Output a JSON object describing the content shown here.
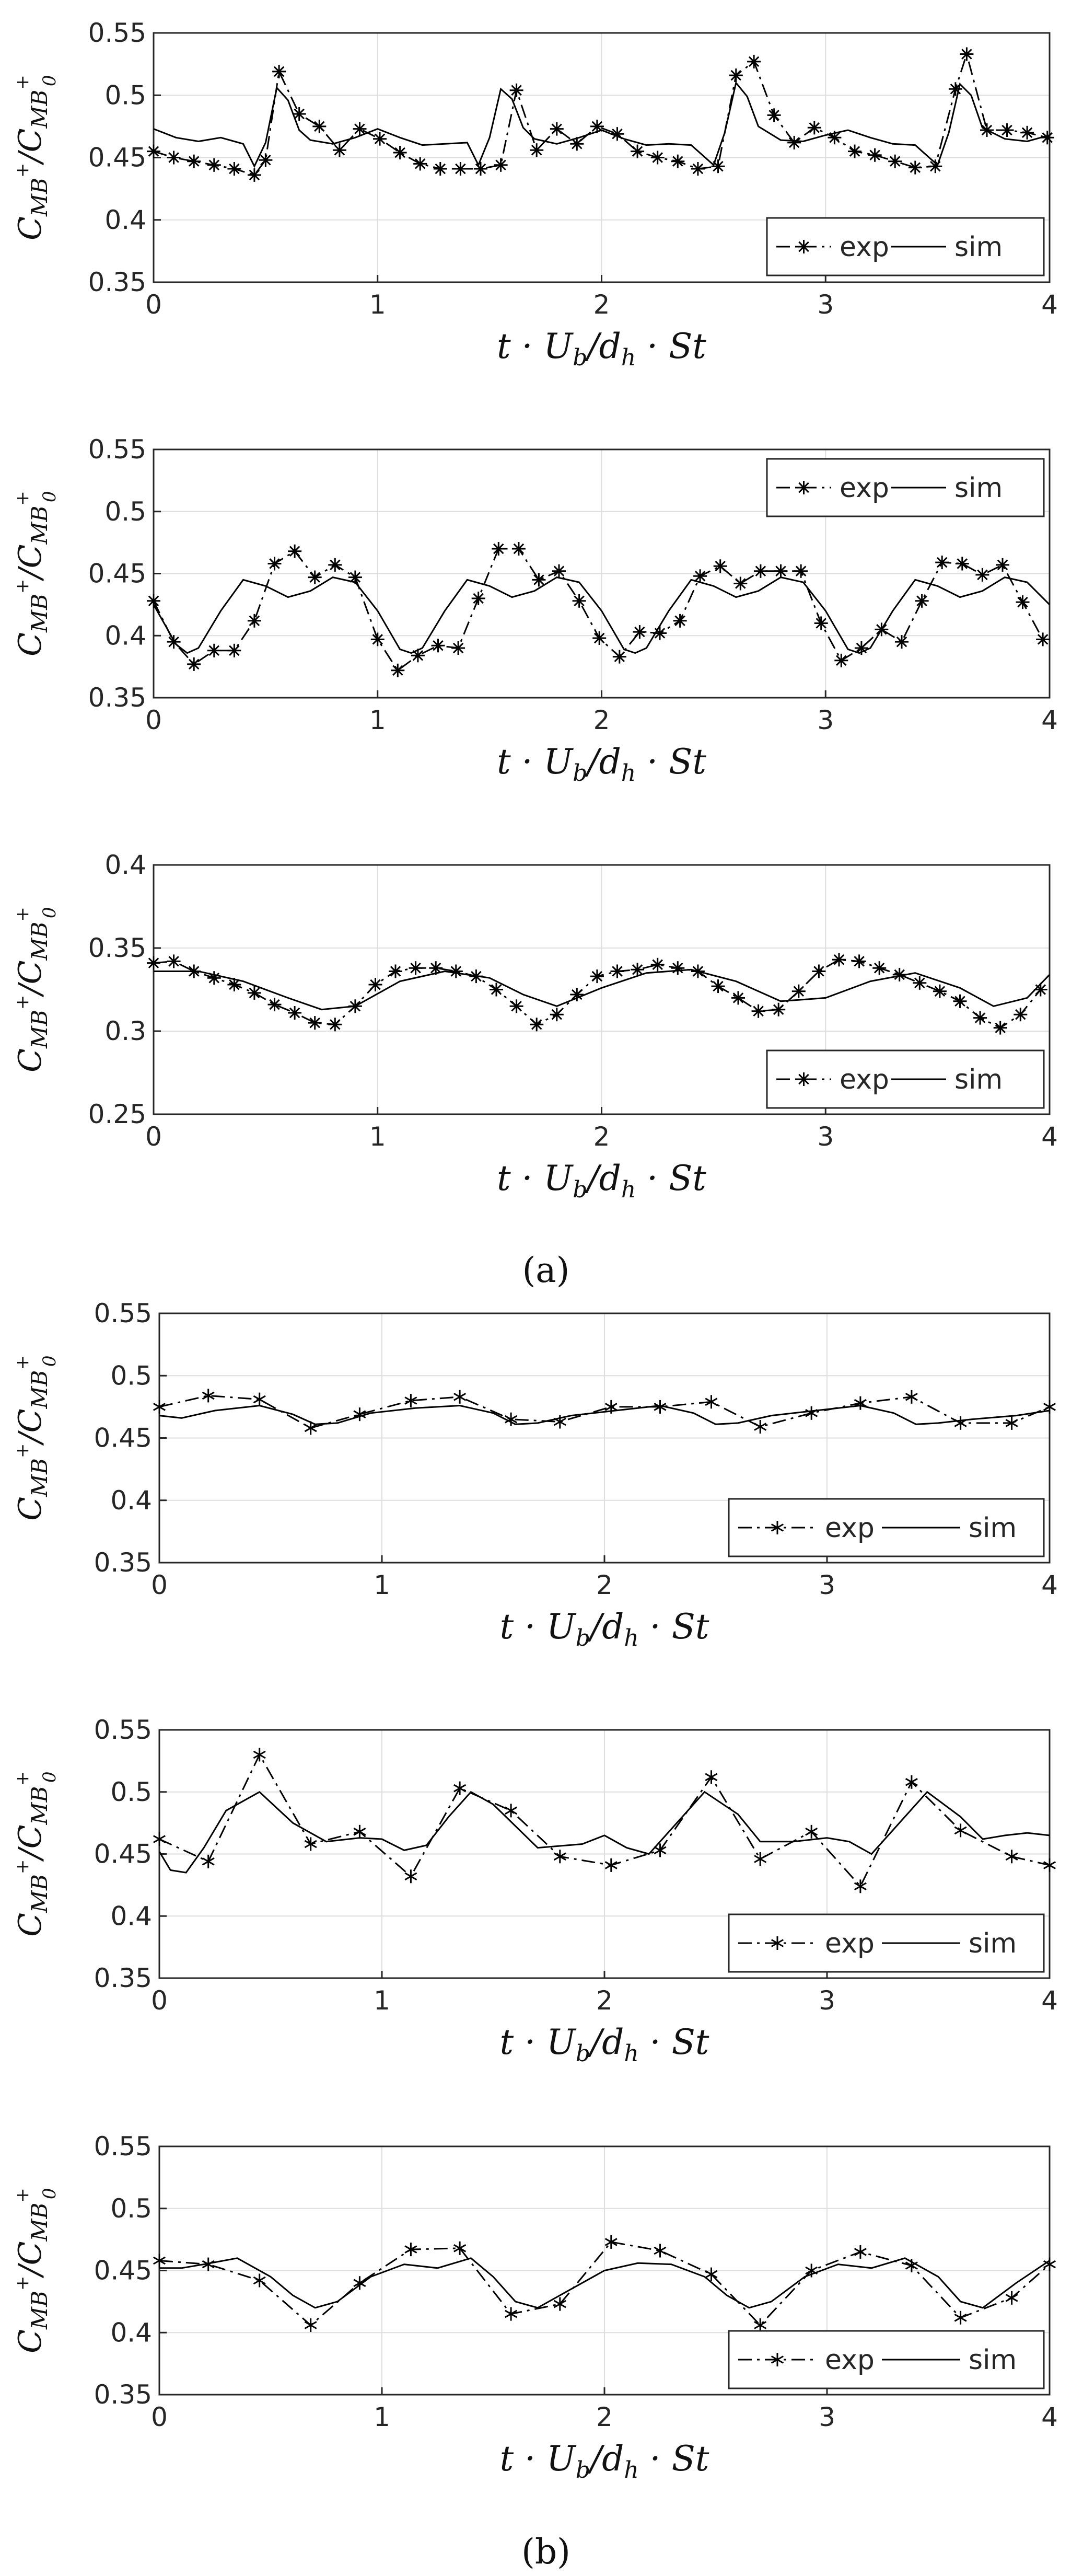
{
  "figure": {
    "label_a": "(a)",
    "label_b": "(b)"
  },
  "chart_data": [
    {
      "type": "line",
      "panel": "a1",
      "marker": "star",
      "legend_location": "bottom-right",
      "xlabel": "t · U_b/d_h · St",
      "ylabel": "C_MB+ / C_MB+_0",
      "xlim": [
        0,
        4
      ],
      "ylim": [
        0.35,
        0.55
      ],
      "xticks": [
        "0",
        "1",
        "2",
        "3",
        "4"
      ],
      "yticks": [
        "0.35",
        "0.4",
        "0.45",
        "0.5",
        "0.55"
      ],
      "series": [
        {
          "name": "exp",
          "style": "dash-dot with star markers",
          "x": [
            0,
            0.09,
            0.18,
            0.27,
            0.36,
            0.45,
            0.5,
            0.56,
            0.65,
            0.74,
            0.83,
            0.92,
            1.01,
            1.1,
            1.19,
            1.28,
            1.37,
            1.46,
            1.55,
            1.62,
            1.71,
            1.8,
            1.89,
            1.98,
            2.07,
            2.16,
            2.25,
            2.34,
            2.43,
            2.52,
            2.6,
            2.68,
            2.77,
            2.86,
            2.95,
            3.04,
            3.13,
            3.22,
            3.31,
            3.4,
            3.49,
            3.58,
            3.63,
            3.72,
            3.81,
            3.9,
            3.99
          ],
          "y": [
            0.455,
            0.45,
            0.447,
            0.444,
            0.441,
            0.436,
            0.448,
            0.519,
            0.485,
            0.475,
            0.456,
            0.473,
            0.465,
            0.454,
            0.445,
            0.441,
            0.441,
            0.441,
            0.444,
            0.504,
            0.456,
            0.473,
            0.461,
            0.475,
            0.469,
            0.455,
            0.45,
            0.447,
            0.441,
            0.443,
            0.516,
            0.527,
            0.484,
            0.462,
            0.474,
            0.466,
            0.455,
            0.452,
            0.447,
            0.442,
            0.443,
            0.505,
            0.533,
            0.472,
            0.472,
            0.47,
            0.466
          ]
        },
        {
          "name": "sim",
          "style": "solid",
          "x": [
            0,
            0.1,
            0.2,
            0.3,
            0.4,
            0.45,
            0.5,
            0.55,
            0.6,
            0.65,
            0.7,
            0.8,
            0.9,
            1,
            1.1,
            1.2,
            1.3,
            1.4,
            1.45,
            1.5,
            1.55,
            1.6,
            1.65,
            1.7,
            1.8,
            1.9,
            2,
            2.1,
            2.2,
            2.3,
            2.4,
            2.5,
            2.55,
            2.6,
            2.65,
            2.7,
            2.8,
            2.9,
            3,
            3.1,
            3.2,
            3.3,
            3.4,
            3.5,
            3.55,
            3.6,
            3.65,
            3.7,
            3.8,
            3.9,
            4
          ],
          "y": [
            0.473,
            0.466,
            0.463,
            0.466,
            0.461,
            0.443,
            0.462,
            0.506,
            0.496,
            0.472,
            0.464,
            0.461,
            0.466,
            0.473,
            0.466,
            0.46,
            0.461,
            0.462,
            0.444,
            0.466,
            0.505,
            0.497,
            0.474,
            0.465,
            0.461,
            0.466,
            0.472,
            0.465,
            0.46,
            0.461,
            0.46,
            0.444,
            0.47,
            0.51,
            0.499,
            0.475,
            0.464,
            0.463,
            0.468,
            0.472,
            0.466,
            0.461,
            0.46,
            0.444,
            0.47,
            0.509,
            0.5,
            0.474,
            0.465,
            0.463,
            0.468
          ]
        }
      ]
    },
    {
      "type": "line",
      "panel": "a2",
      "marker": "star",
      "legend_location": "top-right",
      "xlabel": "t · U_b/d_h · St",
      "ylabel": "C_MB+ / C_MB+_0",
      "xlim": [
        0,
        4
      ],
      "ylim": [
        0.35,
        0.55
      ],
      "xticks": [
        "0",
        "1",
        "2",
        "3",
        "4"
      ],
      "yticks": [
        "0.35",
        "0.4",
        "0.45",
        "0.5",
        "0.55"
      ],
      "series": [
        {
          "name": "exp",
          "style": "dash-dot with star markers",
          "x": [
            0,
            0.09,
            0.18,
            0.27,
            0.36,
            0.45,
            0.54,
            0.63,
            0.72,
            0.81,
            0.9,
            1.0,
            1.09,
            1.18,
            1.27,
            1.36,
            1.45,
            1.54,
            1.63,
            1.72,
            1.81,
            1.9,
            1.99,
            2.08,
            2.17,
            2.26,
            2.35,
            2.44,
            2.53,
            2.62,
            2.71,
            2.8,
            2.89,
            2.98,
            3.07,
            3.16,
            3.25,
            3.34,
            3.43,
            3.52,
            3.61,
            3.7,
            3.79,
            3.88,
            3.97
          ],
          "y": [
            0.428,
            0.395,
            0.377,
            0.388,
            0.388,
            0.412,
            0.458,
            0.468,
            0.447,
            0.457,
            0.447,
            0.397,
            0.372,
            0.384,
            0.392,
            0.39,
            0.43,
            0.47,
            0.47,
            0.445,
            0.452,
            0.428,
            0.398,
            0.383,
            0.403,
            0.402,
            0.412,
            0.448,
            0.456,
            0.442,
            0.452,
            0.452,
            0.452,
            0.41,
            0.38,
            0.39,
            0.405,
            0.395,
            0.428,
            0.459,
            0.458,
            0.449,
            0.457,
            0.427,
            0.397
          ]
        },
        {
          "name": "sim",
          "style": "solid",
          "x": [
            0,
            0.1,
            0.15,
            0.2,
            0.3,
            0.4,
            0.5,
            0.6,
            0.7,
            0.8,
            0.9,
            1.0,
            1.1,
            1.15,
            1.2,
            1.3,
            1.4,
            1.5,
            1.6,
            1.7,
            1.8,
            1.9,
            2.0,
            2.1,
            2.15,
            2.2,
            2.3,
            2.4,
            2.5,
            2.6,
            2.7,
            2.8,
            2.9,
            3.0,
            3.1,
            3.15,
            3.2,
            3.3,
            3.4,
            3.5,
            3.6,
            3.7,
            3.8,
            3.9,
            4.0
          ],
          "y": [
            0.425,
            0.393,
            0.386,
            0.39,
            0.42,
            0.445,
            0.44,
            0.431,
            0.436,
            0.447,
            0.443,
            0.42,
            0.389,
            0.386,
            0.39,
            0.42,
            0.445,
            0.44,
            0.431,
            0.436,
            0.447,
            0.443,
            0.42,
            0.389,
            0.386,
            0.39,
            0.42,
            0.445,
            0.44,
            0.431,
            0.436,
            0.447,
            0.443,
            0.42,
            0.389,
            0.386,
            0.39,
            0.42,
            0.445,
            0.44,
            0.431,
            0.436,
            0.447,
            0.443,
            0.425
          ]
        }
      ]
    },
    {
      "type": "line",
      "panel": "a3",
      "marker": "star",
      "legend_location": "bottom-right",
      "xlabel": "t · U_b/d_h · St",
      "ylabel": "C_MB+ / C_MB+_0",
      "xlim": [
        0,
        4
      ],
      "ylim": [
        0.25,
        0.4
      ],
      "xticks": [
        "0",
        "1",
        "2",
        "3",
        "4"
      ],
      "yticks": [
        "0.25",
        "0.3",
        "0.35",
        "0.4"
      ],
      "series": [
        {
          "name": "exp",
          "style": "dash-dot with star markers",
          "x": [
            0,
            0.09,
            0.18,
            0.27,
            0.36,
            0.45,
            0.54,
            0.63,
            0.72,
            0.81,
            0.9,
            0.99,
            1.08,
            1.17,
            1.26,
            1.35,
            1.44,
            1.53,
            1.62,
            1.71,
            1.8,
            1.89,
            1.98,
            2.07,
            2.16,
            2.25,
            2.34,
            2.43,
            2.52,
            2.61,
            2.7,
            2.79,
            2.88,
            2.97,
            3.06,
            3.15,
            3.24,
            3.33,
            3.42,
            3.51,
            3.6,
            3.69,
            3.78,
            3.87,
            3.96
          ],
          "y": [
            0.341,
            0.342,
            0.336,
            0.332,
            0.328,
            0.323,
            0.316,
            0.311,
            0.305,
            0.304,
            0.315,
            0.328,
            0.336,
            0.338,
            0.338,
            0.336,
            0.333,
            0.325,
            0.315,
            0.304,
            0.31,
            0.322,
            0.333,
            0.336,
            0.337,
            0.34,
            0.338,
            0.336,
            0.327,
            0.32,
            0.312,
            0.313,
            0.324,
            0.336,
            0.343,
            0.342,
            0.338,
            0.334,
            0.329,
            0.324,
            0.318,
            0.308,
            0.302,
            0.31,
            0.325
          ]
        },
        {
          "name": "sim",
          "style": "solid",
          "x": [
            0,
            0.2,
            0.4,
            0.6,
            0.75,
            0.9,
            1.1,
            1.3,
            1.5,
            1.65,
            1.8,
            2.0,
            2.2,
            2.4,
            2.6,
            2.8,
            3.0,
            3.2,
            3.4,
            3.6,
            3.75,
            3.9,
            4.0
          ],
          "y": [
            0.336,
            0.336,
            0.33,
            0.32,
            0.313,
            0.315,
            0.33,
            0.336,
            0.332,
            0.322,
            0.315,
            0.326,
            0.335,
            0.337,
            0.33,
            0.318,
            0.32,
            0.33,
            0.335,
            0.326,
            0.315,
            0.32,
            0.334
          ]
        }
      ]
    },
    {
      "type": "line",
      "panel": "b1",
      "marker": "asterisk",
      "legend_location": "bottom-right",
      "xlabel": "t · U_b/d_h · St",
      "ylabel": "C_MB+ / C_MB+_0",
      "xlim": [
        0,
        4
      ],
      "ylim": [
        0.35,
        0.55
      ],
      "xticks": [
        "0",
        "1",
        "2",
        "3",
        "4"
      ],
      "yticks": [
        "0.35",
        "0.4",
        "0.45",
        "0.5",
        "0.55"
      ],
      "series": [
        {
          "name": "exp",
          "style": "dash-dot with asterisk markers",
          "x": [
            0,
            0.22,
            0.45,
            0.68,
            0.9,
            1.13,
            1.35,
            1.58,
            1.8,
            2.03,
            2.25,
            2.48,
            2.7,
            2.93,
            3.15,
            3.38,
            3.6,
            3.83,
            4.0
          ],
          "y": [
            0.475,
            0.484,
            0.481,
            0.458,
            0.469,
            0.48,
            0.483,
            0.465,
            0.463,
            0.475,
            0.475,
            0.479,
            0.459,
            0.47,
            0.478,
            0.483,
            0.462,
            0.462,
            0.475
          ]
        },
        {
          "name": "sim",
          "style": "solid",
          "x": [
            0,
            0.1,
            0.25,
            0.45,
            0.6,
            0.7,
            0.8,
            0.95,
            1.15,
            1.35,
            1.5,
            1.6,
            1.7,
            1.85,
            2.05,
            2.25,
            2.4,
            2.5,
            2.6,
            2.75,
            2.95,
            3.15,
            3.3,
            3.4,
            3.5,
            3.65,
            3.85,
            4.0
          ],
          "y": [
            0.468,
            0.466,
            0.472,
            0.476,
            0.469,
            0.461,
            0.462,
            0.47,
            0.474,
            0.476,
            0.47,
            0.461,
            0.462,
            0.468,
            0.472,
            0.476,
            0.47,
            0.461,
            0.462,
            0.468,
            0.472,
            0.476,
            0.47,
            0.461,
            0.462,
            0.465,
            0.468,
            0.472
          ]
        }
      ]
    },
    {
      "type": "line",
      "panel": "b2",
      "marker": "asterisk",
      "legend_location": "bottom-right",
      "xlabel": "t · U_b/d_h · St",
      "ylabel": "C_MB+ / C_MB+_0",
      "xlim": [
        0,
        4
      ],
      "ylim": [
        0.35,
        0.55
      ],
      "xticks": [
        "0",
        "1",
        "2",
        "3",
        "4"
      ],
      "yticks": [
        "0.35",
        "0.4",
        "0.45",
        "0.5",
        "0.55"
      ],
      "series": [
        {
          "name": "exp",
          "style": "dash-dot with asterisk markers",
          "x": [
            0,
            0.22,
            0.45,
            0.68,
            0.9,
            1.13,
            1.35,
            1.58,
            1.8,
            2.03,
            2.25,
            2.48,
            2.7,
            2.93,
            3.15,
            3.38,
            3.6,
            3.83,
            4.0
          ],
          "y": [
            0.462,
            0.444,
            0.53,
            0.458,
            0.468,
            0.432,
            0.503,
            0.485,
            0.448,
            0.441,
            0.453,
            0.512,
            0.446,
            0.468,
            0.424,
            0.508,
            0.469,
            0.448,
            0.441
          ]
        },
        {
          "name": "sim",
          "style": "solid",
          "x": [
            0,
            0.05,
            0.12,
            0.2,
            0.3,
            0.45,
            0.6,
            0.75,
            0.9,
            1.0,
            1.1,
            1.2,
            1.3,
            1.4,
            1.5,
            1.7,
            1.9,
            2.0,
            2.1,
            2.2,
            2.3,
            2.45,
            2.6,
            2.7,
            2.85,
            3.0,
            3.1,
            3.2,
            3.3,
            3.45,
            3.6,
            3.7,
            3.8,
            3.9,
            4.0
          ],
          "y": [
            0.452,
            0.437,
            0.435,
            0.455,
            0.485,
            0.5,
            0.475,
            0.46,
            0.463,
            0.462,
            0.453,
            0.457,
            0.48,
            0.5,
            0.49,
            0.455,
            0.458,
            0.465,
            0.455,
            0.45,
            0.47,
            0.5,
            0.482,
            0.46,
            0.46,
            0.463,
            0.46,
            0.45,
            0.47,
            0.5,
            0.48,
            0.462,
            0.465,
            0.467,
            0.465
          ]
        }
      ]
    },
    {
      "type": "line",
      "panel": "b3",
      "marker": "asterisk",
      "legend_location": "bottom-right",
      "xlabel": "t · U_b/d_h · St",
      "ylabel": "C_MB+ / C_MB+_0",
      "xlim": [
        0,
        4
      ],
      "ylim": [
        0.35,
        0.55
      ],
      "xticks": [
        "0",
        "1",
        "2",
        "3",
        "4"
      ],
      "yticks": [
        "0.35",
        "0.4",
        "0.45",
        "0.5",
        "0.55"
      ],
      "series": [
        {
          "name": "exp",
          "style": "dash-dot with asterisk markers",
          "x": [
            0,
            0.22,
            0.45,
            0.68,
            0.9,
            1.13,
            1.35,
            1.58,
            1.8,
            2.03,
            2.25,
            2.48,
            2.7,
            2.93,
            3.15,
            3.38,
            3.6,
            3.83,
            4.0
          ],
          "y": [
            0.458,
            0.455,
            0.442,
            0.406,
            0.44,
            0.467,
            0.468,
            0.415,
            0.423,
            0.473,
            0.466,
            0.447,
            0.406,
            0.45,
            0.465,
            0.454,
            0.412,
            0.428,
            0.455
          ]
        },
        {
          "name": "sim",
          "style": "solid",
          "x": [
            0,
            0.1,
            0.2,
            0.35,
            0.5,
            0.6,
            0.7,
            0.8,
            0.95,
            1.1,
            1.25,
            1.4,
            1.5,
            1.6,
            1.7,
            1.85,
            2.0,
            2.15,
            2.3,
            2.45,
            2.55,
            2.65,
            2.75,
            2.9,
            3.05,
            3.2,
            3.35,
            3.5,
            3.6,
            3.7,
            3.85,
            4.0
          ],
          "y": [
            0.452,
            0.452,
            0.455,
            0.46,
            0.445,
            0.43,
            0.42,
            0.425,
            0.445,
            0.455,
            0.452,
            0.46,
            0.445,
            0.425,
            0.42,
            0.435,
            0.45,
            0.456,
            0.455,
            0.445,
            0.43,
            0.42,
            0.425,
            0.445,
            0.455,
            0.452,
            0.46,
            0.445,
            0.425,
            0.42,
            0.44,
            0.458
          ]
        }
      ]
    }
  ]
}
